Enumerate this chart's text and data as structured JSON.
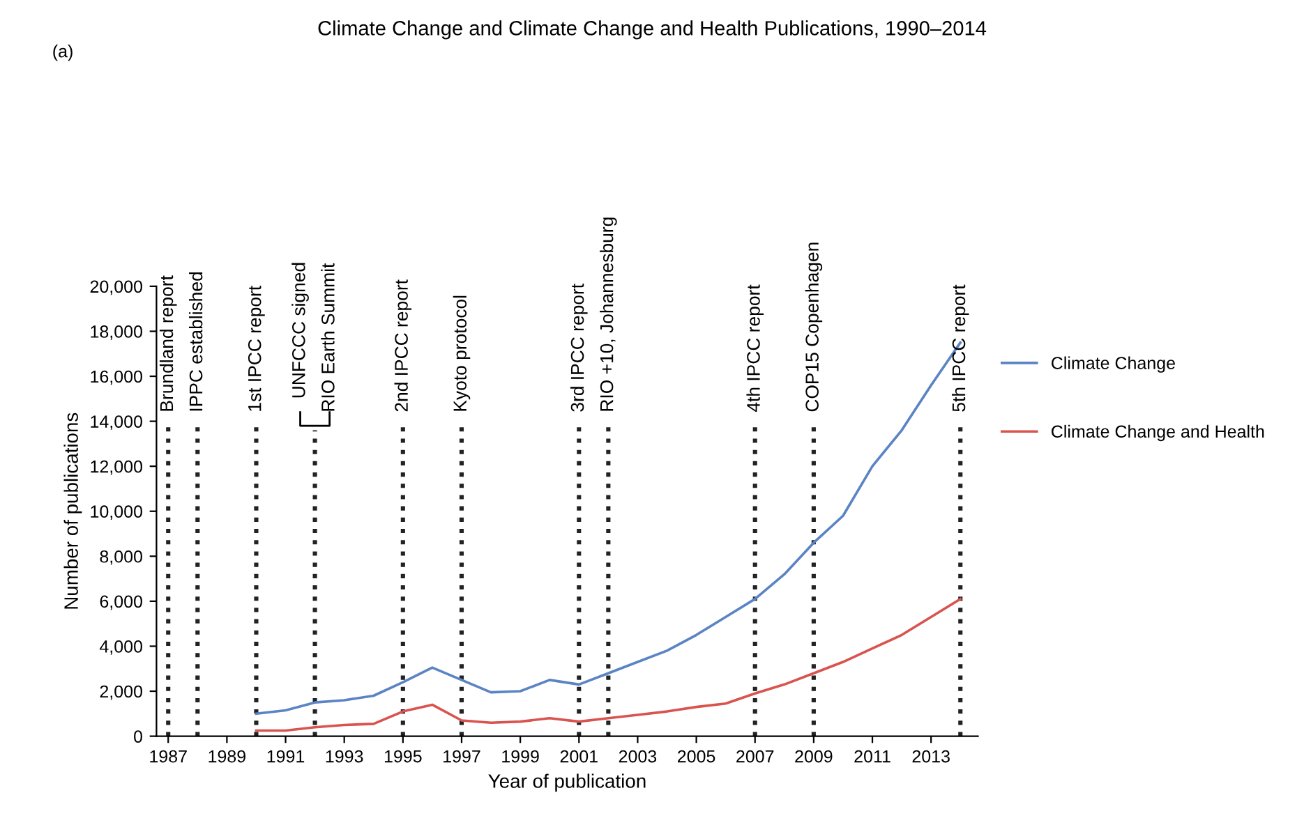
{
  "chart_data": {
    "type": "line",
    "title": "Climate Change and Climate Change and Health Publications, 1990–2014",
    "xlabel": "Year of publication",
    "ylabel": "Number of publications",
    "annotations": [
      "(a)",
      "RIO Earth Summit"
    ],
    "x": [
      1990,
      1991,
      1992,
      1993,
      1994,
      1995,
      1996,
      1997,
      1998,
      1999,
      2000,
      2001,
      2002,
      2003,
      2004,
      2005,
      2006,
      2007,
      2008,
      2009,
      2010,
      2011,
      2012,
      2013,
      2014
    ],
    "series": [
      {
        "name": "Climate Change",
        "color": "#5b84c4",
        "values": [
          1000,
          1150,
          1500,
          1600,
          1800,
          2400,
          3050,
          2500,
          1950,
          2000,
          2500,
          2300,
          2800,
          3300,
          3800,
          4500,
          5300,
          6100,
          7200,
          8600,
          9800,
          12000,
          13600,
          15600,
          17500
        ]
      },
      {
        "name": "Climate Change and Health",
        "color": "#d9534f",
        "values": [
          250,
          250,
          400,
          500,
          550,
          1100,
          1400,
          700,
          600,
          650,
          800,
          650,
          800,
          950,
          1100,
          1300,
          1450,
          1900,
          2300,
          2800,
          3300,
          3900,
          4500,
          5300,
          6100
        ]
      }
    ],
    "xlim": [
      1986.6,
      2014.6
    ],
    "xticks": [
      1987,
      1989,
      1991,
      1993,
      1995,
      1997,
      1999,
      2001,
      2003,
      2005,
      2007,
      2009,
      2011,
      2013
    ],
    "ylim": [
      0,
      20000
    ],
    "yticks": [
      0,
      {
        "value": 2000,
        "label": "2,000"
      },
      {
        "value": 4000,
        "label": "4,000"
      },
      {
        "value": 6000,
        "label": "6,000"
      },
      {
        "value": 8000,
        "label": "8,000"
      },
      {
        "value": 10000,
        "label": "10,000"
      },
      {
        "value": 12000,
        "label": "12,000"
      },
      {
        "value": 14000,
        "label": "14,000"
      },
      {
        "value": 16000,
        "label": "16,000"
      },
      {
        "value": 18000,
        "label": "18,000"
      },
      {
        "value": 20000,
        "label": "20,000"
      }
    ],
    "ref_lines": [
      {
        "axis": "x",
        "value": 1987,
        "label": "Brundland report",
        "color": "#222222",
        "line_style": "dotted"
      },
      {
        "axis": "x",
        "value": 1988,
        "label": "IPPC established",
        "color": "#222222",
        "line_style": "dotted"
      },
      {
        "axis": "x",
        "value": 1990,
        "label": "1st IPCC report",
        "color": "#222222",
        "line_style": "dotted"
      },
      {
        "axis": "x",
        "value": 1992,
        "label": "UNFCCC signed",
        "color": "#222222",
        "line_style": "dotted"
      },
      {
        "axis": "x",
        "value": 1995,
        "label": "2nd IPCC report",
        "color": "#222222",
        "line_style": "dotted"
      },
      {
        "axis": "x",
        "value": 1997,
        "label": "Kyoto protocol",
        "color": "#222222",
        "line_style": "dotted"
      },
      {
        "axis": "x",
        "value": 2001,
        "label": "3rd IPCC report",
        "color": "#222222",
        "line_style": "dotted"
      },
      {
        "axis": "x",
        "value": 2002,
        "label": "RIO +10, Johannesburg",
        "color": "#222222",
        "line_style": "dotted"
      },
      {
        "axis": "x",
        "value": 2007,
        "label": "4th IPCC report",
        "color": "#222222",
        "line_style": "dotted"
      },
      {
        "axis": "x",
        "value": 2009,
        "label": "COP15 Copenhagen",
        "color": "#222222",
        "line_style": "dotted"
      },
      {
        "axis": "x",
        "value": 2014,
        "label": "5th IPCC report",
        "color": "#222222",
        "line_style": "dotted"
      }
    ],
    "grid": false,
    "legend": "right",
    "marker": "none",
    "line_style": "solid"
  }
}
